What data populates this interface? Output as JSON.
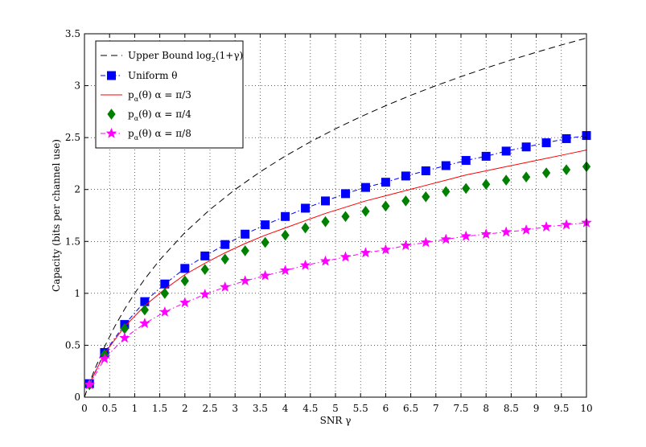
{
  "chart_data": {
    "type": "line",
    "xlabel": "SNR γ",
    "ylabel": "Capacity (bits per channel use)",
    "xlim": [
      0,
      10
    ],
    "ylim": [
      0,
      3.5
    ],
    "xticks": [
      0,
      0.5,
      1,
      1.5,
      2,
      2.5,
      3,
      3.5,
      4,
      4.5,
      5,
      5.5,
      6,
      6.5,
      7,
      7.5,
      8,
      8.5,
      9,
      9.5,
      10
    ],
    "xtick_labels": [
      "0",
      "0.5",
      "1",
      "1.5",
      "2",
      "2.5",
      "3",
      "3.5",
      "4",
      "4.5",
      "5",
      "5.5",
      "6",
      "6.5",
      "7",
      "7.5",
      "8",
      "8.5",
      "9",
      "9.5",
      "10"
    ],
    "yticks": [
      0,
      0.5,
      1,
      1.5,
      2,
      2.5,
      3,
      3.5
    ],
    "ytick_labels": [
      "0",
      "0.5",
      "1",
      "1.5",
      "2",
      "2.5",
      "3",
      "3.5"
    ],
    "grid": true,
    "legend_position": "top-left",
    "series": [
      {
        "name": "Upper Bound log2(1+γ)",
        "legend_main": "Upper Bound log",
        "legend_sub": "2",
        "legend_tail": "(1+γ)",
        "style": "dashed",
        "marker": "none",
        "color": "#000000",
        "x": [
          0,
          0.1,
          0.2,
          0.4,
          0.6,
          0.8,
          1,
          1.2,
          1.5,
          2,
          2.5,
          3,
          3.5,
          4,
          4.5,
          5,
          5.5,
          6,
          6.5,
          7,
          7.5,
          8,
          8.5,
          9,
          9.5,
          10
        ],
        "values": [
          0,
          0.1375,
          0.263,
          0.485,
          0.678,
          0.848,
          1.0,
          1.137,
          1.322,
          1.585,
          1.807,
          2.0,
          2.17,
          2.322,
          2.459,
          2.585,
          2.7,
          2.807,
          2.907,
          3.0,
          3.087,
          3.17,
          3.248,
          3.322,
          3.392,
          3.459
        ]
      },
      {
        "name": "Uniform θ",
        "legend_main": "Uniform θ",
        "style": "dashdot",
        "marker": "square",
        "color": "#0000ff",
        "x": [
          0.1,
          0.4,
          0.8,
          1.2,
          1.6,
          2.0,
          2.4,
          2.8,
          3.2,
          3.6,
          4.0,
          4.4,
          4.8,
          5.2,
          5.6,
          6.0,
          6.4,
          6.8,
          7.2,
          7.6,
          8.0,
          8.4,
          8.8,
          9.2,
          9.6,
          10.0
        ],
        "values": [
          0.13,
          0.43,
          0.7,
          0.92,
          1.09,
          1.24,
          1.36,
          1.47,
          1.57,
          1.66,
          1.74,
          1.82,
          1.89,
          1.96,
          2.02,
          2.07,
          2.13,
          2.18,
          2.23,
          2.28,
          2.32,
          2.37,
          2.41,
          2.45,
          2.49,
          2.52
        ]
      },
      {
        "name": "pα(θ) α = π/3",
        "legend_main": "p",
        "legend_sub": "α",
        "legend_tail": "(θ) α = π/3",
        "style": "solid",
        "marker": "none",
        "color": "#ff0000",
        "x": [
          0.1,
          0.4,
          0.8,
          1.2,
          1.6,
          2.0,
          2.4,
          2.8,
          3.2,
          3.6,
          4.0,
          4.4,
          4.8,
          5.2,
          5.6,
          6.0,
          6.4,
          6.8,
          7.2,
          7.6,
          8.0,
          8.4,
          8.8,
          9.2,
          9.6,
          10.0
        ],
        "values": [
          0.13,
          0.42,
          0.68,
          0.88,
          1.04,
          1.18,
          1.29,
          1.39,
          1.48,
          1.56,
          1.63,
          1.7,
          1.77,
          1.83,
          1.89,
          1.94,
          1.99,
          2.04,
          2.09,
          2.14,
          2.18,
          2.22,
          2.26,
          2.3,
          2.34,
          2.38
        ]
      },
      {
        "name": "pα(θ) α = π/4",
        "legend_main": "p",
        "legend_sub": "α",
        "legend_tail": "(θ) α = π/4",
        "style": "none",
        "marker": "diamond",
        "color": "#008000",
        "x": [
          0.1,
          0.4,
          0.8,
          1.2,
          1.6,
          2.0,
          2.4,
          2.8,
          3.2,
          3.6,
          4.0,
          4.4,
          4.8,
          5.2,
          5.6,
          6.0,
          6.4,
          6.8,
          7.2,
          7.6,
          8.0,
          8.4,
          8.8,
          9.2,
          9.6,
          10.0
        ],
        "values": [
          0.12,
          0.41,
          0.66,
          0.84,
          1.0,
          1.12,
          1.23,
          1.33,
          1.41,
          1.49,
          1.56,
          1.63,
          1.69,
          1.74,
          1.79,
          1.84,
          1.89,
          1.93,
          1.98,
          2.01,
          2.05,
          2.09,
          2.12,
          2.16,
          2.19,
          2.22
        ]
      },
      {
        "name": "pα(θ) α = π/8",
        "legend_main": "p",
        "legend_sub": "α",
        "legend_tail": "(θ) α = π/8",
        "style": "dashdot",
        "marker": "star",
        "color": "#ff00ff",
        "x": [
          0.1,
          0.4,
          0.8,
          1.2,
          1.6,
          2.0,
          2.4,
          2.8,
          3.2,
          3.6,
          4.0,
          4.4,
          4.8,
          5.2,
          5.6,
          6.0,
          6.4,
          6.8,
          7.2,
          7.6,
          8.0,
          8.4,
          8.8,
          9.2,
          9.6,
          10.0
        ],
        "values": [
          0.12,
          0.37,
          0.57,
          0.71,
          0.82,
          0.91,
          0.99,
          1.06,
          1.12,
          1.17,
          1.22,
          1.27,
          1.31,
          1.35,
          1.39,
          1.42,
          1.46,
          1.49,
          1.52,
          1.55,
          1.57,
          1.59,
          1.61,
          1.64,
          1.66,
          1.68
        ]
      }
    ]
  }
}
